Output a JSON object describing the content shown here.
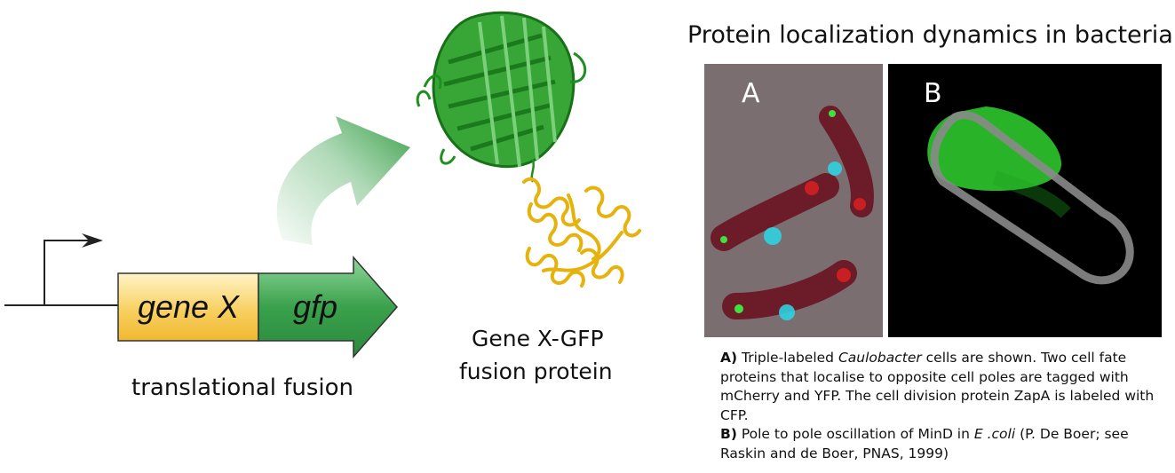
{
  "diagram": {
    "gene_left_label": "gene X",
    "gene_right_label": "gfp",
    "fusion_caption": "translational fusion",
    "protein_caption_line1": "Gene X-GFP",
    "protein_caption_line2": "fusion protein"
  },
  "figure": {
    "title": "Protein localization dynamics in bacteria",
    "panel_a_letter": "A",
    "panel_b_letter": "B"
  },
  "caption": {
    "a_label": "A)",
    "a_text_1": " Triple-labeled ",
    "a_species": "Caulobacter",
    "a_text_2": " cells are shown. Two cell fate proteins that localise to opposite cell poles are tagged with mCherry and YFP.  The cell division protein ZapA is labeled with CFP.",
    "b_label": "B)",
    "b_text_1": " Pole to pole oscillation of MinD in ",
    "b_species": "E .coli",
    "b_text_2": " (P. De Boer; see Raskin and de Boer, PNAS, 1999)"
  },
  "colors": {
    "gene_x_fill": "#f8c94a",
    "gfp_fill": "#3aa14c",
    "gfp_structure": "#2aa02a",
    "helix_domain": "#f0c419",
    "mcherry": "#e02020",
    "yfp": "#40e040",
    "cfp": "#30d0e0"
  }
}
